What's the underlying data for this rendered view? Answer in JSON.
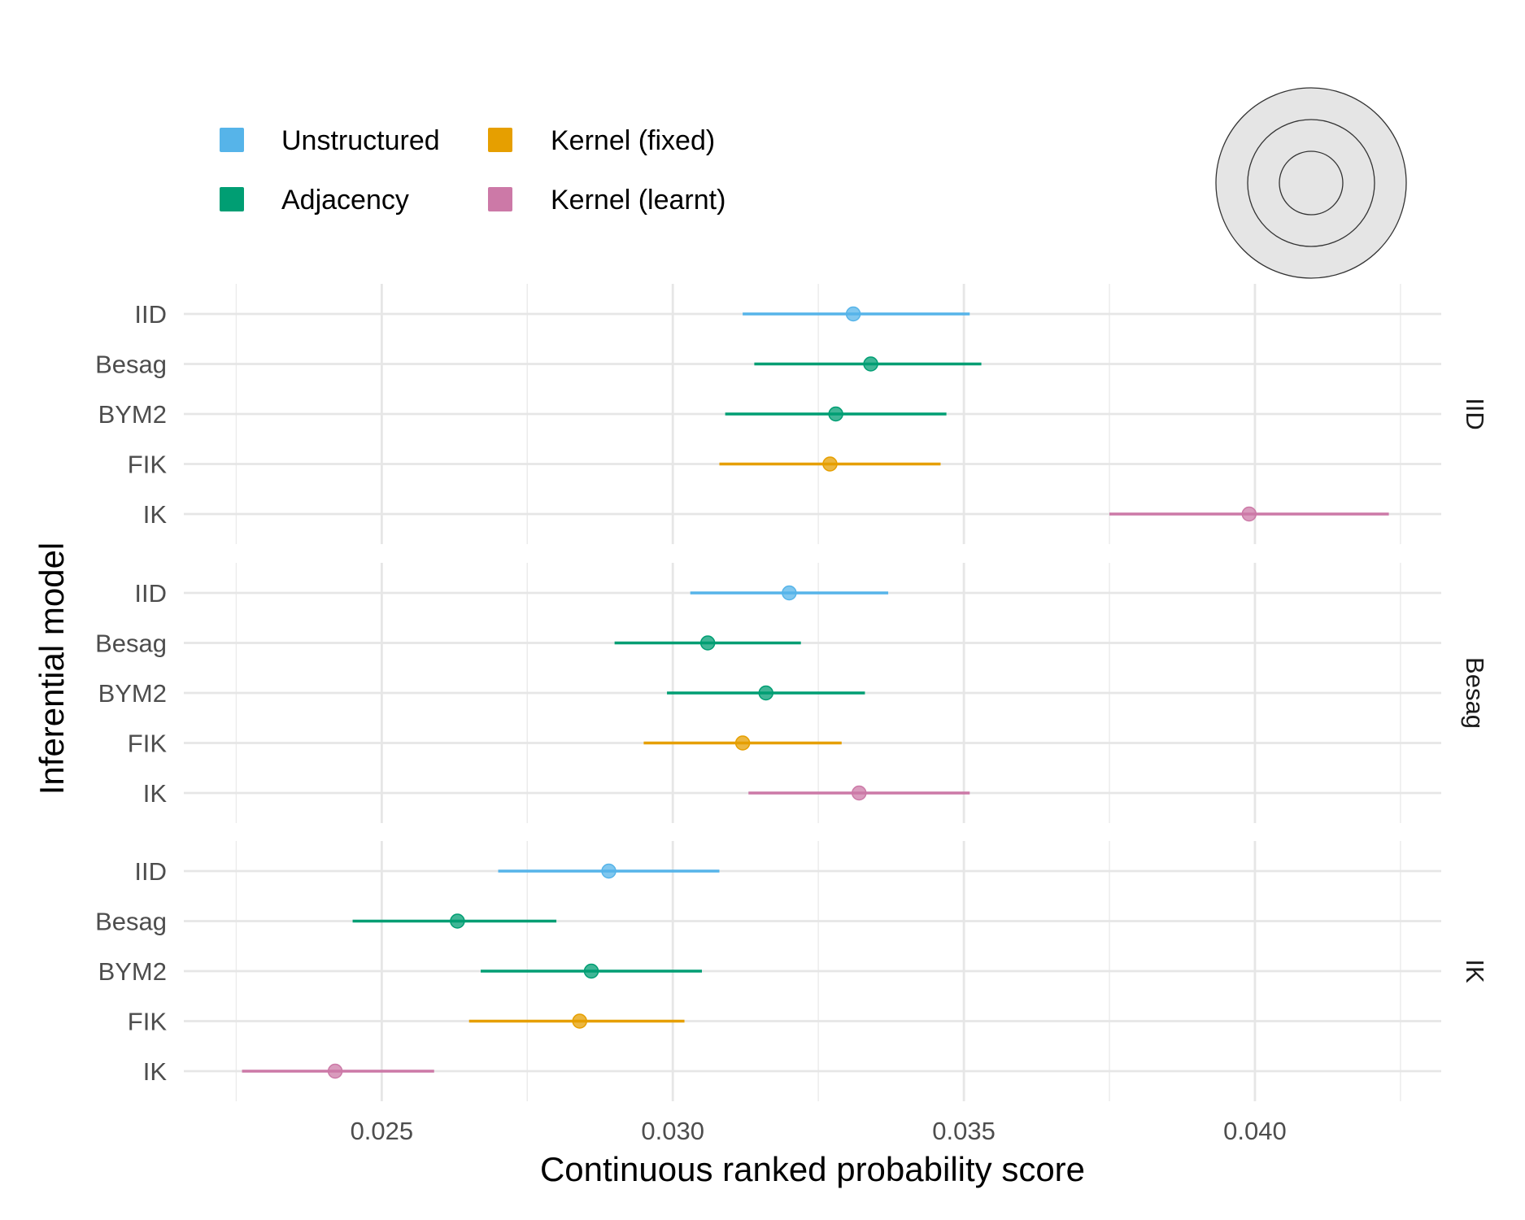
{
  "chart_data": {
    "type": "scatter",
    "style": "point-range",
    "xlabel": "Continuous ranked probability score",
    "ylabel": "Inferential model",
    "xlim": [
      0.0216,
      0.0432
    ],
    "x_ticks": [
      "0.025",
      "0.030",
      "0.035",
      "0.040"
    ],
    "x_tick_values": [
      0.025,
      0.03,
      0.035,
      0.04
    ],
    "grid": true,
    "legend": {
      "placement": "top-left",
      "entries": [
        {
          "name": "Unstructured",
          "color": "#56B4E9"
        },
        {
          "name": "Kernel (fixed)",
          "color": "#E69F00"
        },
        {
          "name": "Adjacency",
          "color": "#009E73"
        },
        {
          "name": "Kernel (learnt)",
          "color": "#CC79A7"
        }
      ]
    },
    "models": [
      "IID",
      "Besag",
      "BYM2",
      "FIK",
      "IK"
    ],
    "model_colors": [
      "#56B4E9",
      "#009E73",
      "#009E73",
      "#E69F00",
      "#CC79A7"
    ],
    "panels": [
      {
        "strip": "IID",
        "points": [
          {
            "model": "IID",
            "est": 0.0331,
            "lo": 0.0312,
            "hi": 0.0351
          },
          {
            "model": "Besag",
            "est": 0.0334,
            "lo": 0.0314,
            "hi": 0.0353
          },
          {
            "model": "BYM2",
            "est": 0.0328,
            "lo": 0.0309,
            "hi": 0.0347
          },
          {
            "model": "FIK",
            "est": 0.0327,
            "lo": 0.0308,
            "hi": 0.0346
          },
          {
            "model": "IK",
            "est": 0.0399,
            "lo": 0.0375,
            "hi": 0.0423
          }
        ]
      },
      {
        "strip": "Besag",
        "points": [
          {
            "model": "IID",
            "est": 0.032,
            "lo": 0.0303,
            "hi": 0.0337
          },
          {
            "model": "Besag",
            "est": 0.0306,
            "lo": 0.029,
            "hi": 0.0322
          },
          {
            "model": "BYM2",
            "est": 0.0316,
            "lo": 0.0299,
            "hi": 0.0333
          },
          {
            "model": "FIK",
            "est": 0.0312,
            "lo": 0.0295,
            "hi": 0.0329
          },
          {
            "model": "IK",
            "est": 0.0332,
            "lo": 0.0313,
            "hi": 0.0351
          }
        ]
      },
      {
        "strip": "IK",
        "points": [
          {
            "model": "IID",
            "est": 0.0289,
            "lo": 0.027,
            "hi": 0.0308
          },
          {
            "model": "Besag",
            "est": 0.0263,
            "lo": 0.0245,
            "hi": 0.028
          },
          {
            "model": "BYM2",
            "est": 0.0286,
            "lo": 0.0267,
            "hi": 0.0305
          },
          {
            "model": "FIK",
            "est": 0.0284,
            "lo": 0.0265,
            "hi": 0.0302
          },
          {
            "model": "IK",
            "est": 0.0242,
            "lo": 0.0226,
            "hi": 0.0259
          }
        ]
      }
    ]
  }
}
